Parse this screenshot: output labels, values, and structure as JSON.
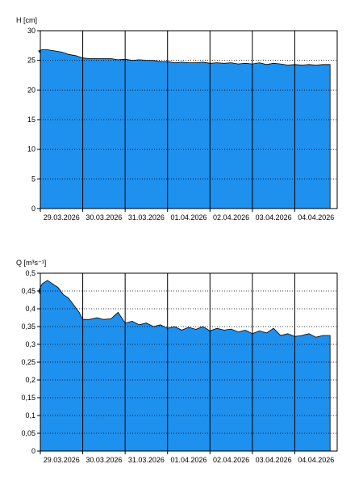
{
  "chart_data": [
    {
      "type": "area",
      "ylabel": "H [cm]",
      "ylim": [
        0,
        30
      ],
      "yticks": [
        "0",
        "5",
        "10",
        "15",
        "20",
        "25",
        "30"
      ],
      "xrange": [
        "29.03.2026",
        "05.04.2026"
      ],
      "xticks": [
        "29.03.2026",
        "30.03.2026",
        "31.03.2026",
        "01.04.2026",
        "02.04.2026",
        "03.04.2026",
        "04.04.2026"
      ],
      "grid": true,
      "color": "#1e90ee",
      "x": [
        "28.03.2026 22:00",
        "28.03.2026 23:00",
        "29.03.2026 01:00",
        "29.03.2026 04:00",
        "29.03.2026 08:00",
        "29.03.2026 12:00",
        "29.03.2026 16:00",
        "29.03.2026 20:00",
        "30.03.2026 00:00",
        "30.03.2026 04:00",
        "30.03.2026 08:00",
        "30.03.2026 12:00",
        "30.03.2026 16:00",
        "30.03.2026 20:00",
        "31.03.2026 00:00",
        "31.03.2026 04:00",
        "31.03.2026 08:00",
        "31.03.2026 12:00",
        "31.03.2026 16:00",
        "31.03.2026 20:00",
        "01.04.2026 00:00",
        "01.04.2026 04:00",
        "01.04.2026 08:00",
        "01.04.2026 12:00",
        "01.04.2026 16:00",
        "01.04.2026 20:00",
        "02.04.2026 00:00",
        "02.04.2026 04:00",
        "02.04.2026 08:00",
        "02.04.2026 12:00",
        "02.04.2026 16:00",
        "02.04.2026 20:00",
        "03.04.2026 00:00",
        "03.04.2026 04:00",
        "03.04.2026 08:00",
        "03.04.2026 12:00",
        "03.04.2026 16:00",
        "03.04.2026 20:00",
        "04.04.2026 00:00",
        "04.04.2026 04:00",
        "04.04.2026 08:00",
        "04.04.2026 12:00",
        "04.04.2026 16:00",
        "04.04.2026 20:00"
      ],
      "values": [
        26.2,
        26.6,
        26.8,
        26.8,
        26.6,
        26.4,
        26.0,
        25.8,
        25.4,
        25.3,
        25.3,
        25.3,
        25.3,
        25.1,
        25.2,
        25.0,
        25.1,
        25.0,
        25.0,
        24.8,
        24.8,
        24.6,
        24.7,
        24.6,
        24.6,
        24.7,
        24.5,
        24.6,
        24.5,
        24.6,
        24.4,
        24.5,
        24.4,
        24.6,
        24.3,
        24.5,
        24.4,
        24.2,
        24.3,
        24.2,
        24.3,
        24.2,
        24.3,
        24.3
      ]
    },
    {
      "type": "area",
      "ylabel": "Q [m³s⁻¹]",
      "ylim": [
        0,
        0.5
      ],
      "yticks": [
        "0",
        "0,05",
        "0,1",
        "0,15",
        "0,2",
        "0,25",
        "0,3",
        "0,35",
        "0,4",
        "0,45",
        "0,5"
      ],
      "xrange": [
        "29.03.2026",
        "05.04.2026"
      ],
      "xticks": [
        "29.03.2026",
        "30.03.2026",
        "31.03.2026",
        "01.04.2026",
        "02.04.2026",
        "03.04.2026",
        "04.04.2026"
      ],
      "grid": true,
      "color": "#1e90ee",
      "x": [
        "28.03.2026 22:00",
        "28.03.2026 23:00",
        "29.03.2026 01:00",
        "29.03.2026 04:00",
        "29.03.2026 07:00",
        "29.03.2026 10:00",
        "29.03.2026 13:00",
        "29.03.2026 16:00",
        "29.03.2026 19:00",
        "29.03.2026 22:00",
        "30.03.2026 00:00",
        "30.03.2026 04:00",
        "30.03.2026 08:00",
        "30.03.2026 12:00",
        "30.03.2026 16:00",
        "30.03.2026 20:00",
        "31.03.2026 00:00",
        "31.03.2026 04:00",
        "31.03.2026 08:00",
        "31.03.2026 12:00",
        "31.03.2026 16:00",
        "31.03.2026 20:00",
        "01.04.2026 00:00",
        "01.04.2026 04:00",
        "01.04.2026 08:00",
        "01.04.2026 12:00",
        "01.04.2026 16:00",
        "01.04.2026 20:00",
        "02.04.2026 00:00",
        "02.04.2026 04:00",
        "02.04.2026 08:00",
        "02.04.2026 12:00",
        "02.04.2026 16:00",
        "02.04.2026 20:00",
        "03.04.2026 00:00",
        "03.04.2026 04:00",
        "03.04.2026 08:00",
        "03.04.2026 12:00",
        "03.04.2026 16:00",
        "03.04.2026 20:00",
        "04.04.2026 00:00",
        "04.04.2026 04:00",
        "04.04.2026 08:00",
        "04.04.2026 12:00",
        "04.04.2026 16:00",
        "04.04.2026 20:00"
      ],
      "values": [
        0.44,
        0.45,
        0.47,
        0.48,
        0.47,
        0.46,
        0.44,
        0.43,
        0.41,
        0.39,
        0.37,
        0.37,
        0.375,
        0.37,
        0.372,
        0.39,
        0.36,
        0.365,
        0.355,
        0.36,
        0.35,
        0.355,
        0.345,
        0.35,
        0.34,
        0.348,
        0.342,
        0.35,
        0.338,
        0.345,
        0.34,
        0.343,
        0.335,
        0.34,
        0.33,
        0.338,
        0.332,
        0.345,
        0.325,
        0.33,
        0.322,
        0.325,
        0.33,
        0.32,
        0.325,
        0.325
      ]
    }
  ]
}
